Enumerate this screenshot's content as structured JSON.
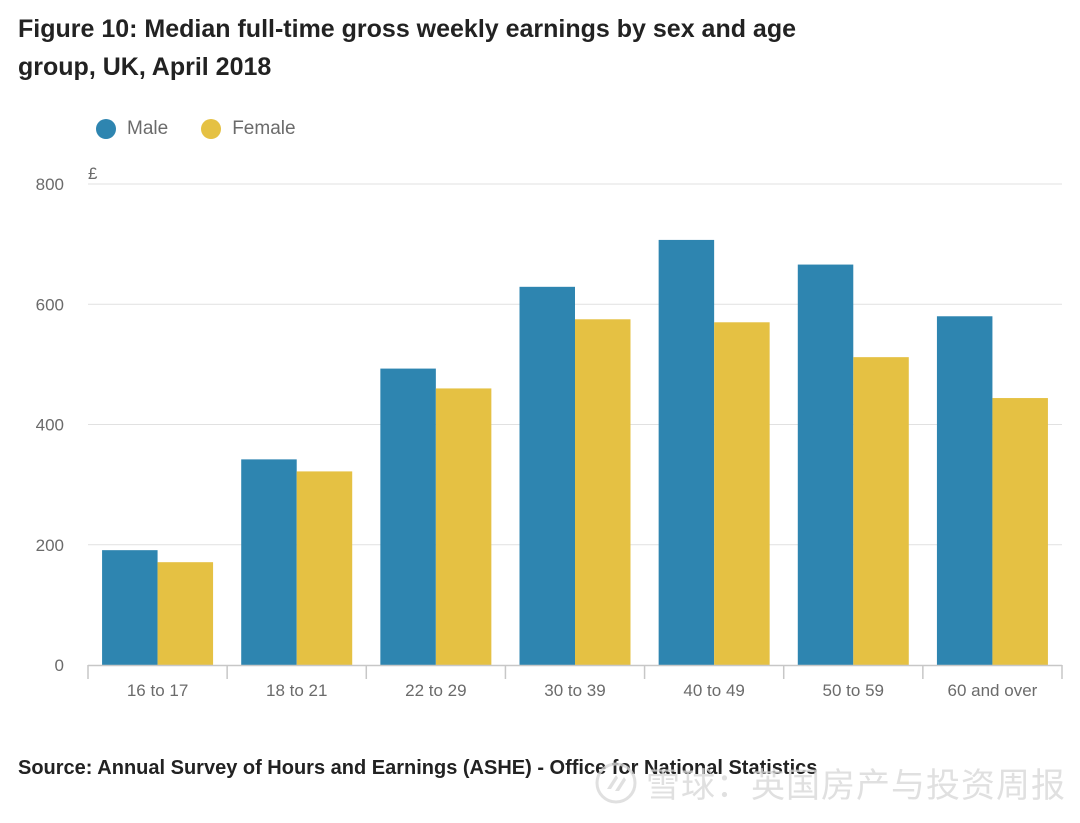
{
  "figure": {
    "title": "Figure 10: Median full-time gross weekly earnings by sex and age group, UK, April 2018",
    "source": "Source: Annual Survey of Hours and Earnings (ASHE) - Office for National Statistics"
  },
  "legend": {
    "male": "Male",
    "female": "Female"
  },
  "watermark": {
    "text": "雪球：英国房产与投资周报"
  },
  "colors": {
    "male": "#2e85b0",
    "female": "#e5c143",
    "grid": "#e1e1e1",
    "axis": "#c7c7c7"
  },
  "chart_data": {
    "type": "bar",
    "title": "Figure 10: Median full-time gross weekly earnings by sex and age group, UK, April 2018",
    "xlabel": "",
    "ylabel": "£",
    "ylim": [
      0,
      800
    ],
    "yticks": [
      0,
      200,
      400,
      600,
      800
    ],
    "grid": true,
    "legend_position": "top-left",
    "categories": [
      "16 to 17",
      "18 to 21",
      "22 to 29",
      "30 to 39",
      "40 to 49",
      "50 to 59",
      "60 and over"
    ],
    "series": [
      {
        "name": "Male",
        "values": [
          191,
          342,
          493,
          629,
          707,
          666,
          580
        ]
      },
      {
        "name": "Female",
        "values": [
          171,
          322,
          460,
          575,
          570,
          512,
          444
        ]
      }
    ]
  }
}
